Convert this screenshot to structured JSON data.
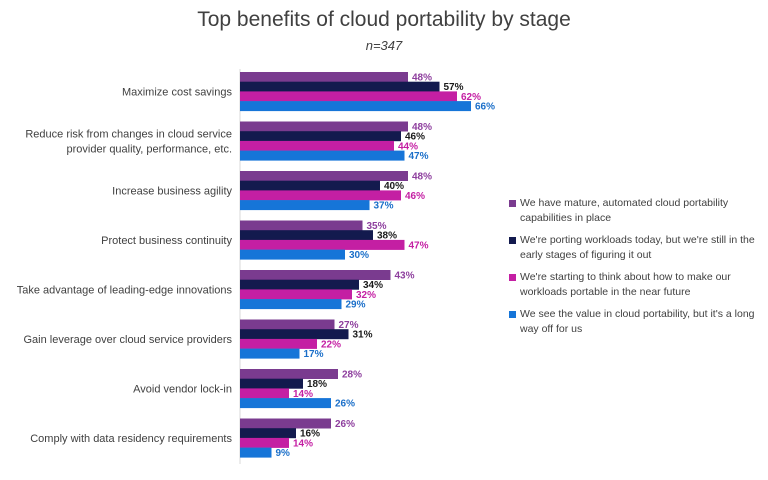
{
  "chart_data": {
    "type": "bar",
    "orientation": "horizontal",
    "title": "Top benefits of cloud portability by stage",
    "subtitle": "n=347",
    "categories": [
      "Maximize cost savings",
      "Reduce risk from changes in cloud service provider quality, performance, etc.",
      "Increase business agility",
      "Protect business continuity",
      "Take advantage of leading-edge innovations",
      "Gain leverage over cloud service providers",
      "Avoid vendor lock-in",
      "Comply with data residency requirements"
    ],
    "series": [
      {
        "name": "We have mature, automated cloud portability capabilities in place",
        "color": "#7a3b8f",
        "label_color": "#8e3f9e",
        "values": [
          48,
          48,
          48,
          35,
          43,
          27,
          28,
          26
        ]
      },
      {
        "name": "We're porting workloads today, but we're still in the early stages of figuring it out",
        "color": "#131a4e",
        "label_color": "#1a1a1a",
        "values": [
          57,
          46,
          40,
          38,
          34,
          31,
          18,
          16
        ]
      },
      {
        "name": "We're starting to think about how to make our workloads portable in the near future",
        "color": "#c41fa3",
        "label_color": "#c41fa3",
        "values": [
          62,
          44,
          46,
          47,
          32,
          22,
          14,
          14
        ]
      },
      {
        "name": "We see the value in cloud portability, but it's a long way off for us",
        "color": "#1675d8",
        "label_color": "#1b6fc9",
        "values": [
          66,
          47,
          37,
          30,
          29,
          17,
          26,
          9
        ]
      }
    ],
    "value_suffix": "%",
    "xlim": [
      0,
      100
    ],
    "grid": false,
    "legend_position": "right"
  }
}
